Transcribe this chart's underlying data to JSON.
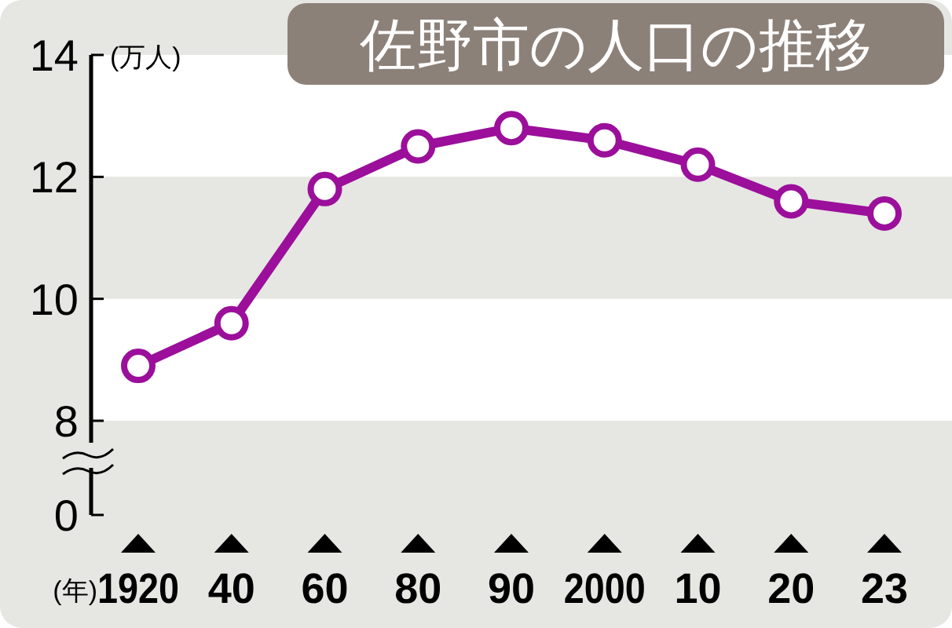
{
  "chart_data": {
    "type": "line",
    "title": "佐野市の人口の推移",
    "ylabel": "(万人)",
    "xlabel": "(年)",
    "categories": [
      "1920",
      "40",
      "60",
      "80",
      "90",
      "2000",
      "10",
      "20",
      "23"
    ],
    "series": [
      {
        "color": "#9b0f9b",
        "values": [
          8.9,
          9.6,
          11.8,
          12.5,
          12.8,
          12.6,
          12.2,
          11.6,
          11.4
        ]
      }
    ],
    "ylim": [
      8,
      14
    ],
    "yticks": [
      8,
      10,
      12,
      14
    ],
    "annotations": [
      "0"
    ],
    "bands": [
      {
        "axis": "y",
        "from": 12,
        "to": 14,
        "color": "#ffffff"
      },
      {
        "axis": "y",
        "from": 10,
        "to": 12,
        "color": "#e6e6e2"
      },
      {
        "axis": "y",
        "from": 8,
        "to": 10,
        "color": "#ffffff"
      }
    ],
    "marker": "circle",
    "line_style": "solid",
    "grid": false
  }
}
